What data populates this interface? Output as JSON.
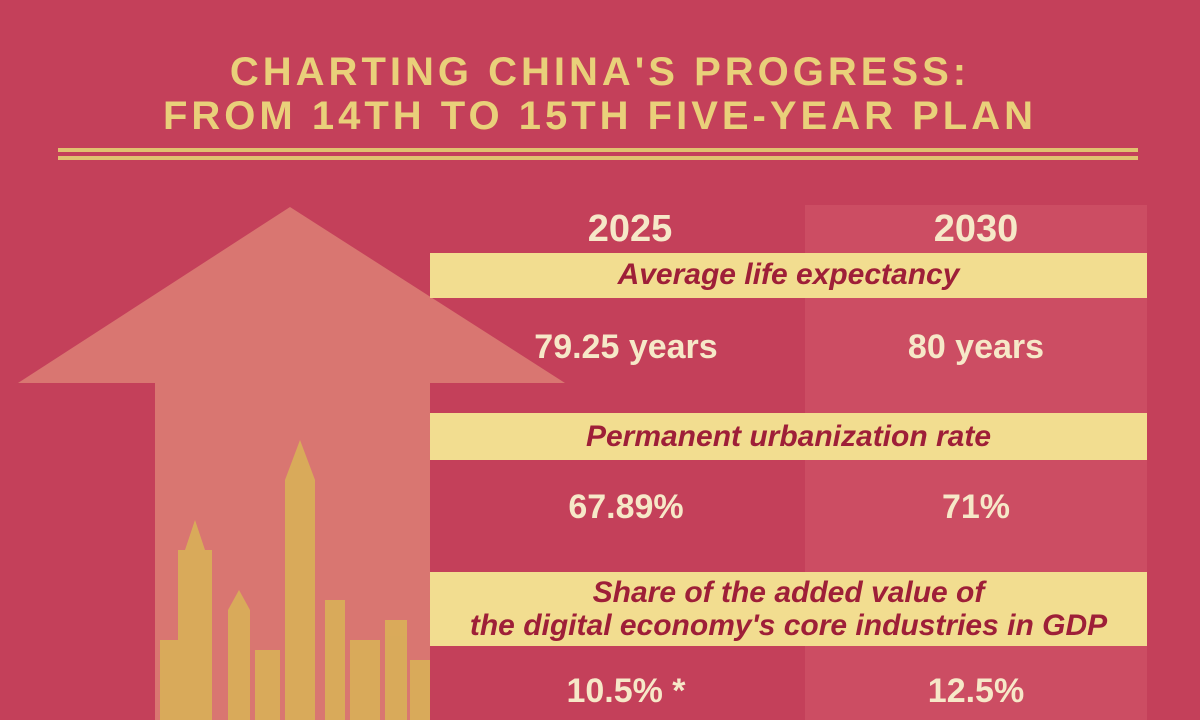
{
  "header": {
    "title": [
      "CHARTING CHINA'S PROGRESS:",
      "FROM 14TH TO 15TH FIVE-YEAR PLAN"
    ]
  },
  "table": {
    "columns": [
      "2025",
      "2030"
    ],
    "rows": [
      {
        "label": [
          "Average life expectancy"
        ],
        "values": [
          "79.25 years",
          "80 years"
        ]
      },
      {
        "label": [
          "Permanent urbanization rate"
        ],
        "values": [
          "67.89%",
          "71%"
        ]
      },
      {
        "label": [
          "Share of the added value of",
          "the digital economy's core industries in GDP"
        ],
        "values": [
          "10.5% *",
          "12.5%"
        ]
      }
    ]
  }
}
